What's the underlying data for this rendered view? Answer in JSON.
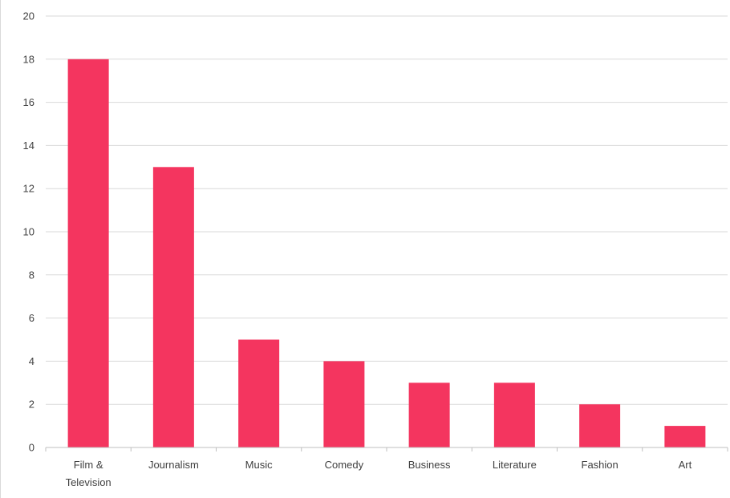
{
  "chart_data": {
    "type": "bar",
    "title": "",
    "xlabel": "",
    "ylabel": "",
    "categories": [
      "Film & Television",
      "Journalism",
      "Music",
      "Comedy",
      "Business",
      "Literature",
      "Fashion",
      "Art"
    ],
    "category_lines": [
      [
        "Film &",
        "Television"
      ],
      [
        "Journalism"
      ],
      [
        "Music"
      ],
      [
        "Comedy"
      ],
      [
        "Business"
      ],
      [
        "Literature"
      ],
      [
        "Fashion"
      ],
      [
        "Art"
      ]
    ],
    "values": [
      18,
      13,
      5,
      4,
      3,
      3,
      2,
      1
    ],
    "ylim": [
      0,
      20
    ],
    "yticks": [
      0,
      2,
      4,
      6,
      8,
      10,
      12,
      14,
      16,
      18,
      20
    ],
    "grid": true,
    "legend": "none",
    "colors": {
      "bar": "#f4355f",
      "grid": "#d9d9d9",
      "axis": "#bfbfbf",
      "text": "#404040"
    }
  }
}
